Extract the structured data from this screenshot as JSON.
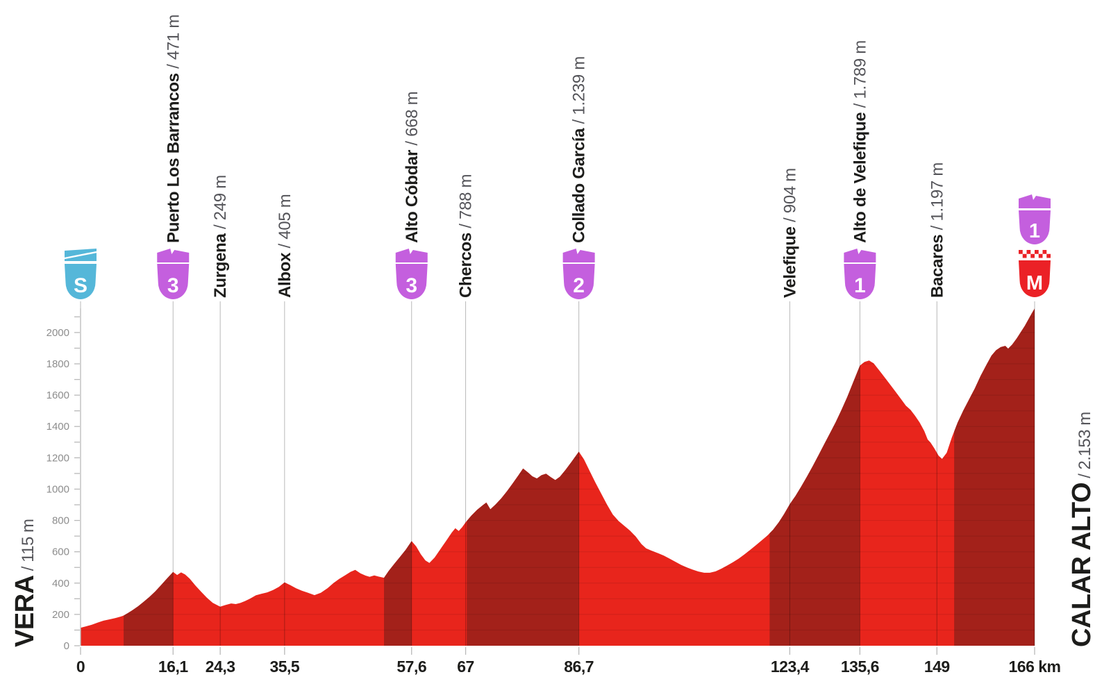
{
  "chart_data": {
    "type": "area",
    "description": "Cycling stage elevation profile from Vera to Calar Alto",
    "x_unit": "km",
    "y_unit": "m",
    "xlim": [
      0,
      166
    ],
    "ylim": [
      0,
      2200
    ],
    "grid": "horizontal-inside-fill",
    "start": {
      "name": "VERA",
      "elevation_label": "/ 115 m"
    },
    "finish": {
      "name": "CALAR ALTO",
      "elevation_label": "/ 2.153 m"
    },
    "y_ticks": [
      0,
      200,
      400,
      600,
      800,
      1000,
      1200,
      1400,
      1600,
      1800,
      2000
    ],
    "y_minor_tick_step": 100,
    "x_ticks": [
      {
        "km": 0,
        "label": "0"
      },
      {
        "km": 16.1,
        "label": "16,1"
      },
      {
        "km": 24.3,
        "label": "24,3"
      },
      {
        "km": 35.5,
        "label": "35,5"
      },
      {
        "km": 57.6,
        "label": "57,6"
      },
      {
        "km": 67,
        "label": "67"
      },
      {
        "km": 86.7,
        "label": "86,7"
      },
      {
        "km": 123.4,
        "label": "123,4"
      },
      {
        "km": 135.6,
        "label": "135,6"
      },
      {
        "km": 149,
        "label": "149"
      },
      {
        "km": 166,
        "label": "166 km"
      }
    ],
    "waypoints": [
      {
        "km": 0,
        "name": "",
        "elevation_label": "",
        "marker": "S"
      },
      {
        "km": 16.1,
        "name": "Puerto Los Barrancos",
        "elevation_label": "/ 471 m",
        "marker": "3"
      },
      {
        "km": 24.3,
        "name": "Zurgena",
        "elevation_label": "/ 249 m",
        "marker": null
      },
      {
        "km": 35.5,
        "name": "Albox",
        "elevation_label": "/ 405 m",
        "marker": null
      },
      {
        "km": 57.6,
        "name": "Alto Cóbdar",
        "elevation_label": "/ 668 m",
        "marker": "3"
      },
      {
        "km": 67,
        "name": "Chercos",
        "elevation_label": "/ 788 m",
        "marker": null
      },
      {
        "km": 86.7,
        "name": "Collado García",
        "elevation_label": "/ 1.239 m",
        "marker": "2"
      },
      {
        "km": 123.4,
        "name": "Velefique",
        "elevation_label": "/ 904 m",
        "marker": null
      },
      {
        "km": 135.6,
        "name": "Alto de Velefique",
        "elevation_label": "/ 1.789 m",
        "marker": "1"
      },
      {
        "km": 149,
        "name": "Bacares",
        "elevation_label": "/ 1.197 m",
        "marker": null
      },
      {
        "km": 166,
        "name": "",
        "elevation_label": "",
        "marker": "1+M"
      }
    ],
    "climb_segments": [
      [
        7.5,
        16.1
      ],
      [
        52.8,
        57.6
      ],
      [
        67.2,
        86.7
      ],
      [
        119.9,
        135.6
      ],
      [
        152,
        166
      ]
    ],
    "profile": [
      [
        0,
        115
      ],
      [
        1,
        124
      ],
      [
        2,
        135
      ],
      [
        3,
        148
      ],
      [
        4,
        160
      ],
      [
        5,
        168
      ],
      [
        6,
        176
      ],
      [
        7,
        186
      ],
      [
        7.5,
        193
      ],
      [
        8.2,
        208
      ],
      [
        9,
        226
      ],
      [
        10,
        252
      ],
      [
        11,
        281
      ],
      [
        12,
        312
      ],
      [
        13,
        347
      ],
      [
        14,
        387
      ],
      [
        15,
        428
      ],
      [
        16.1,
        471
      ],
      [
        16.8,
        452
      ],
      [
        17.5,
        468
      ],
      [
        18.2,
        455
      ],
      [
        19,
        428
      ],
      [
        20,
        384
      ],
      [
        21,
        344
      ],
      [
        22,
        306
      ],
      [
        23,
        274
      ],
      [
        24.3,
        249
      ],
      [
        25.2,
        260
      ],
      [
        26.2,
        270
      ],
      [
        27,
        266
      ],
      [
        27.8,
        273
      ],
      [
        28.6,
        285
      ],
      [
        29.5,
        301
      ],
      [
        30.5,
        322
      ],
      [
        31.5,
        332
      ],
      [
        32.5,
        341
      ],
      [
        33.5,
        356
      ],
      [
        34.5,
        376
      ],
      [
        35.5,
        405
      ],
      [
        36.5,
        387
      ],
      [
        37.5,
        367
      ],
      [
        38.5,
        351
      ],
      [
        39.5,
        339
      ],
      [
        40.7,
        323
      ],
      [
        41.8,
        338
      ],
      [
        43,
        368
      ],
      [
        44,
        400
      ],
      [
        45,
        427
      ],
      [
        46,
        449
      ],
      [
        47,
        472
      ],
      [
        47.8,
        484
      ],
      [
        48.7,
        462
      ],
      [
        49.6,
        448
      ],
      [
        50.3,
        440
      ],
      [
        51.1,
        449
      ],
      [
        51.9,
        441
      ],
      [
        52.8,
        434
      ],
      [
        53.6,
        477
      ],
      [
        54.6,
        523
      ],
      [
        55.6,
        568
      ],
      [
        56.6,
        614
      ],
      [
        57.6,
        668
      ],
      [
        58.4,
        634
      ],
      [
        59.2,
        584
      ],
      [
        60,
        545
      ],
      [
        60.7,
        529
      ],
      [
        61.6,
        563
      ],
      [
        62.6,
        616
      ],
      [
        63.6,
        669
      ],
      [
        64.6,
        723
      ],
      [
        65.2,
        750
      ],
      [
        65.8,
        733
      ],
      [
        66.4,
        757
      ],
      [
        67,
        788
      ],
      [
        68,
        831
      ],
      [
        69,
        868
      ],
      [
        70,
        898
      ],
      [
        70.6,
        914
      ],
      [
        71.3,
        871
      ],
      [
        72.2,
        902
      ],
      [
        73.2,
        941
      ],
      [
        74.2,
        987
      ],
      [
        75.2,
        1037
      ],
      [
        76.2,
        1089
      ],
      [
        77,
        1132
      ],
      [
        77.8,
        1108
      ],
      [
        78.6,
        1082
      ],
      [
        79.4,
        1068
      ],
      [
        80.2,
        1089
      ],
      [
        81,
        1098
      ],
      [
        81.8,
        1077
      ],
      [
        82.6,
        1058
      ],
      [
        83.4,
        1079
      ],
      [
        84.4,
        1124
      ],
      [
        85.4,
        1173
      ],
      [
        86.7,
        1239
      ],
      [
        87.6,
        1189
      ],
      [
        88.6,
        1114
      ],
      [
        89.6,
        1041
      ],
      [
        90.6,
        971
      ],
      [
        91.6,
        901
      ],
      [
        92.6,
        838
      ],
      [
        93.6,
        797
      ],
      [
        94.6,
        766
      ],
      [
        95.6,
        735
      ],
      [
        96.6,
        697
      ],
      [
        97.6,
        649
      ],
      [
        98.4,
        622
      ],
      [
        99.4,
        606
      ],
      [
        100.5,
        591
      ],
      [
        101.5,
        575
      ],
      [
        102.5,
        556
      ],
      [
        103.5,
        536
      ],
      [
        104.5,
        516
      ],
      [
        105.5,
        500
      ],
      [
        106.5,
        486
      ],
      [
        107.5,
        474
      ],
      [
        108.5,
        466
      ],
      [
        109.5,
        466
      ],
      [
        110.5,
        475
      ],
      [
        111.5,
        492
      ],
      [
        112.5,
        512
      ],
      [
        113.5,
        533
      ],
      [
        114.5,
        556
      ],
      [
        115.5,
        583
      ],
      [
        116.5,
        612
      ],
      [
        117.5,
        642
      ],
      [
        118.5,
        672
      ],
      [
        119.5,
        703
      ],
      [
        120.5,
        741
      ],
      [
        121.5,
        789
      ],
      [
        122.4,
        840
      ],
      [
        123.4,
        904
      ],
      [
        124.4,
        957
      ],
      [
        125.4,
        1017
      ],
      [
        126.4,
        1081
      ],
      [
        127.4,
        1147
      ],
      [
        128.4,
        1217
      ],
      [
        129.4,
        1288
      ],
      [
        130.4,
        1357
      ],
      [
        131.4,
        1428
      ],
      [
        132.4,
        1506
      ],
      [
        133.4,
        1589
      ],
      [
        134.4,
        1679
      ],
      [
        135.6,
        1789
      ],
      [
        136.4,
        1812
      ],
      [
        137.2,
        1821
      ],
      [
        138,
        1803
      ],
      [
        139,
        1757
      ],
      [
        140,
        1709
      ],
      [
        141,
        1661
      ],
      [
        142,
        1613
      ],
      [
        142.8,
        1573
      ],
      [
        143.6,
        1533
      ],
      [
        144.4,
        1507
      ],
      [
        145.2,
        1469
      ],
      [
        146,
        1425
      ],
      [
        146.8,
        1371
      ],
      [
        147.4,
        1317
      ],
      [
        147.9,
        1297
      ],
      [
        148.5,
        1263
      ],
      [
        149.3,
        1213
      ],
      [
        149.9,
        1193
      ],
      [
        150.7,
        1232
      ],
      [
        151.6,
        1330
      ],
      [
        152.6,
        1425
      ],
      [
        153.6,
        1503
      ],
      [
        154.6,
        1573
      ],
      [
        155.6,
        1643
      ],
      [
        156.6,
        1723
      ],
      [
        157.6,
        1793
      ],
      [
        158.5,
        1853
      ],
      [
        159.3,
        1887
      ],
      [
        160.1,
        1907
      ],
      [
        160.9,
        1915
      ],
      [
        161.4,
        1897
      ],
      [
        162.1,
        1923
      ],
      [
        162.9,
        1963
      ],
      [
        163.6,
        2003
      ],
      [
        164.3,
        2043
      ],
      [
        164.9,
        2083
      ],
      [
        165.5,
        2123
      ],
      [
        166,
        2153
      ]
    ],
    "colors": {
      "profile_red": "#E8251C",
      "climb_dark_red": "#A3211A",
      "category_purple": "#C45FDE",
      "start_cyan": "#55B7D9",
      "finish_red": "#EB2126",
      "badge_letter_white": "#FFFFFF",
      "label_dark": "#1D1D1B",
      "label_gray": "#55555A",
      "axis_gray": "#B9B9B9",
      "tick_label_gray": "#8D8D8D",
      "grid_line": "rgba(0,0,0,0.09)",
      "guide_line": "rgba(0,0,0,0.28)"
    }
  }
}
